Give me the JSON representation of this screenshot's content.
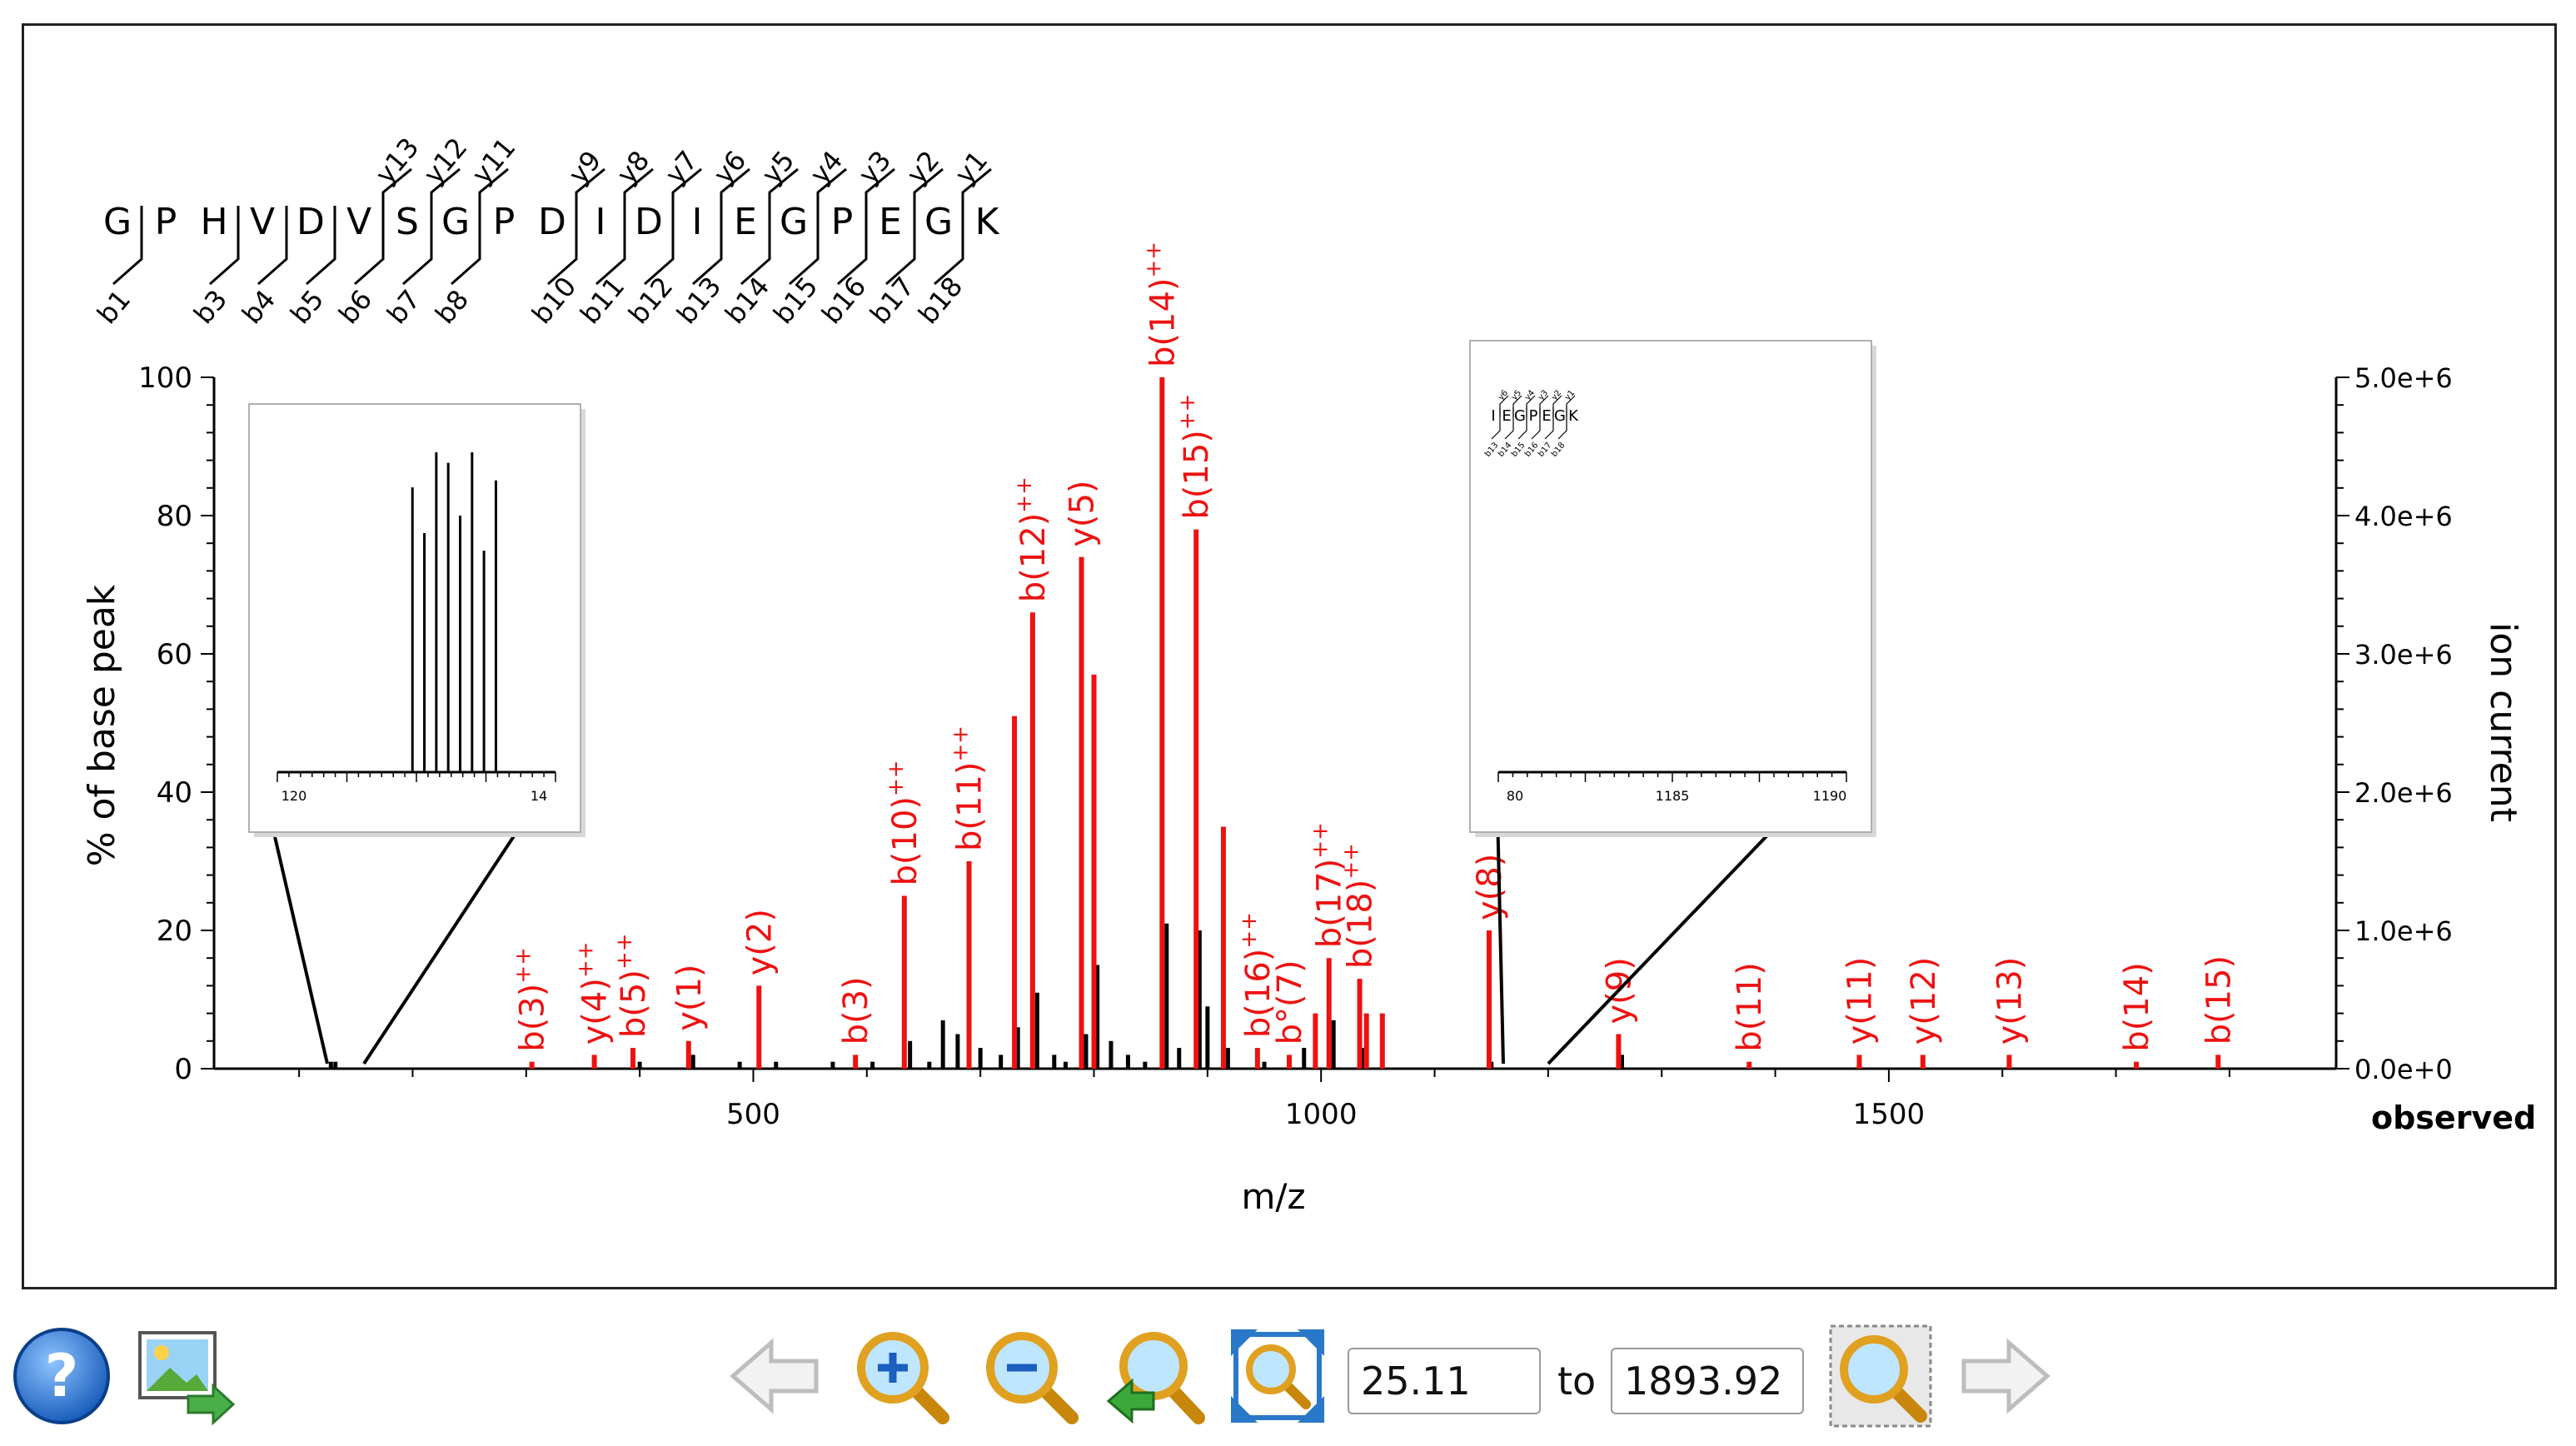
{
  "colors": {
    "matched": "#ee1111",
    "unmatched": "#000000",
    "frame": "#222222"
  },
  "peptide": {
    "residues": [
      "G",
      "P",
      "H",
      "V",
      "D",
      "V",
      "S",
      "G",
      "P",
      "D",
      "I",
      "D",
      "I",
      "E",
      "G",
      "P",
      "E",
      "G",
      "K"
    ],
    "y_ions": [
      {
        "label": "y13",
        "after": 6
      },
      {
        "label": "y12",
        "after": 7
      },
      {
        "label": "y11",
        "after": 8
      },
      {
        "label": "y9",
        "after": 10
      },
      {
        "label": "y8",
        "after": 11
      },
      {
        "label": "y7",
        "after": 12
      },
      {
        "label": "y6",
        "after": 13
      },
      {
        "label": "y5",
        "after": 14
      },
      {
        "label": "y4",
        "after": 15
      },
      {
        "label": "y3",
        "after": 16
      },
      {
        "label": "y2",
        "after": 17
      },
      {
        "label": "y1",
        "after": 18
      }
    ],
    "b_ions": [
      {
        "label": "b1",
        "after": 1
      },
      {
        "label": "b3",
        "after": 3
      },
      {
        "label": "b4",
        "after": 4
      },
      {
        "label": "b5",
        "after": 5
      },
      {
        "label": "b6",
        "after": 6
      },
      {
        "label": "b7",
        "after": 7
      },
      {
        "label": "b8",
        "after": 8
      },
      {
        "label": "b10",
        "after": 10
      },
      {
        "label": "b11",
        "after": 11
      },
      {
        "label": "b12",
        "after": 12
      },
      {
        "label": "b13",
        "after": 13
      },
      {
        "label": "b14",
        "after": 14
      },
      {
        "label": "b15",
        "after": 15
      },
      {
        "label": "b16",
        "after": 16
      },
      {
        "label": "b17",
        "after": 17
      },
      {
        "label": "b18",
        "after": 18
      }
    ]
  },
  "chart_data": {
    "type": "bar",
    "xlabel": "m/z",
    "ylabel": "% of base peak",
    "y2label": "ion current",
    "xlim": [
      25.11,
      1893.92
    ],
    "ylim": [
      0,
      100
    ],
    "y2lim": [
      0,
      5000000
    ],
    "xticks": [
      500,
      1000,
      1500
    ],
    "yticks": [
      0,
      20,
      40,
      60,
      80,
      100
    ],
    "y2ticks": [
      "0.0e+0",
      "1.0e+6",
      "2.0e+6",
      "3.0e+6",
      "4.0e+6",
      "5.0e+6"
    ],
    "corner_label": "observed",
    "matched_peaks": [
      {
        "mz": 305,
        "intensity": 1,
        "label": "b(3)",
        "charge": "++"
      },
      {
        "mz": 360,
        "intensity": 2,
        "label": "y(4)",
        "charge": "++"
      },
      {
        "mz": 394,
        "intensity": 3,
        "label": "b(5)",
        "charge": "++"
      },
      {
        "mz": 443,
        "intensity": 4,
        "label": "y(1)",
        "charge": ""
      },
      {
        "mz": 505,
        "intensity": 12,
        "label": "y(2)",
        "charge": ""
      },
      {
        "mz": 590,
        "intensity": 2,
        "label": "b(3)",
        "charge": ""
      },
      {
        "mz": 633,
        "intensity": 25,
        "label": "b(10)",
        "charge": "++"
      },
      {
        "mz": 690,
        "intensity": 30,
        "label": "b(11)",
        "charge": "++"
      },
      {
        "mz": 746,
        "intensity": 66,
        "label": "b(12)",
        "charge": "++"
      },
      {
        "mz": 730,
        "intensity": 51,
        "label": "",
        "charge": ""
      },
      {
        "mz": 789,
        "intensity": 74,
        "label": "y(5)",
        "charge": ""
      },
      {
        "mz": 800,
        "intensity": 57,
        "label": "",
        "charge": ""
      },
      {
        "mz": 860,
        "intensity": 100,
        "label": "b(14)",
        "charge": "++"
      },
      {
        "mz": 890,
        "intensity": 78,
        "label": "b(15)",
        "charge": "++"
      },
      {
        "mz": 914,
        "intensity": 35,
        "label": "",
        "charge": ""
      },
      {
        "mz": 944,
        "intensity": 3,
        "label": "b(16)",
        "charge": "++"
      },
      {
        "mz": 972,
        "intensity": 2,
        "label": "b°(7)",
        "charge": ""
      },
      {
        "mz": 995,
        "intensity": 8,
        "label": "",
        "charge": ""
      },
      {
        "mz": 1007,
        "intensity": 16,
        "label": "b(17)",
        "charge": "++"
      },
      {
        "mz": 1034,
        "intensity": 13,
        "label": "b(18)",
        "charge": "++"
      },
      {
        "mz": 1040,
        "intensity": 8,
        "label": "",
        "charge": ""
      },
      {
        "mz": 1054,
        "intensity": 8,
        "label": "",
        "charge": ""
      },
      {
        "mz": 1148,
        "intensity": 20,
        "label": "y(8)",
        "charge": ""
      },
      {
        "mz": 1262,
        "intensity": 5,
        "label": "y(9)",
        "charge": ""
      },
      {
        "mz": 1377,
        "intensity": 1,
        "label": "b(11)",
        "charge": ""
      },
      {
        "mz": 1474,
        "intensity": 2,
        "label": "y(11)",
        "charge": ""
      },
      {
        "mz": 1530,
        "intensity": 2,
        "label": "y(12)",
        "charge": ""
      },
      {
        "mz": 1606,
        "intensity": 2,
        "label": "y(13)",
        "charge": ""
      },
      {
        "mz": 1718,
        "intensity": 1,
        "label": "b(14)",
        "charge": ""
      },
      {
        "mz": 1790,
        "intensity": 2,
        "label": "b(15)",
        "charge": ""
      }
    ],
    "unmatched_peaks": [
      {
        "mz": 128,
        "intensity": 1
      },
      {
        "mz": 132,
        "intensity": 1
      },
      {
        "mz": 360,
        "intensity": 1
      },
      {
        "mz": 400,
        "intensity": 1
      },
      {
        "mz": 447,
        "intensity": 2
      },
      {
        "mz": 488,
        "intensity": 1
      },
      {
        "mz": 520,
        "intensity": 1
      },
      {
        "mz": 570,
        "intensity": 1
      },
      {
        "mz": 605,
        "intensity": 1
      },
      {
        "mz": 638,
        "intensity": 4
      },
      {
        "mz": 655,
        "intensity": 1
      },
      {
        "mz": 667,
        "intensity": 7
      },
      {
        "mz": 680,
        "intensity": 5
      },
      {
        "mz": 700,
        "intensity": 3
      },
      {
        "mz": 718,
        "intensity": 2
      },
      {
        "mz": 733,
        "intensity": 6
      },
      {
        "mz": 750,
        "intensity": 11
      },
      {
        "mz": 765,
        "intensity": 2
      },
      {
        "mz": 775,
        "intensity": 1
      },
      {
        "mz": 793,
        "intensity": 5
      },
      {
        "mz": 803,
        "intensity": 15
      },
      {
        "mz": 815,
        "intensity": 4
      },
      {
        "mz": 830,
        "intensity": 2
      },
      {
        "mz": 845,
        "intensity": 1
      },
      {
        "mz": 864,
        "intensity": 21
      },
      {
        "mz": 875,
        "intensity": 3
      },
      {
        "mz": 893,
        "intensity": 20
      },
      {
        "mz": 900,
        "intensity": 9
      },
      {
        "mz": 918,
        "intensity": 3
      },
      {
        "mz": 950,
        "intensity": 1
      },
      {
        "mz": 985,
        "intensity": 3
      },
      {
        "mz": 1011,
        "intensity": 7
      },
      {
        "mz": 1036,
        "intensity": 3
      },
      {
        "mz": 1150,
        "intensity": 1
      },
      {
        "mz": 1265,
        "intensity": 2
      }
    ],
    "insets": [
      {
        "name": "inset-zoom-left",
        "xlabels": [
          "120",
          "14"
        ],
        "xlim": [
          110,
          145
        ],
        "peaks": [
          {
            "mz": 127,
            "h": 81
          },
          {
            "mz": 128.5,
            "h": 68
          },
          {
            "mz": 130,
            "h": 91
          },
          {
            "mz": 131.5,
            "h": 88
          },
          {
            "mz": 133,
            "h": 73
          },
          {
            "mz": 134.5,
            "h": 91
          },
          {
            "mz": 136,
            "h": 63
          },
          {
            "mz": 137.5,
            "h": 83
          }
        ]
      },
      {
        "name": "inset-zoom-right",
        "xlabels": [
          "80",
          "1185",
          "1190"
        ],
        "xlim": [
          1180,
          1190
        ],
        "sequence": [
          "I",
          "E",
          "G",
          "P",
          "E",
          "G",
          "K"
        ],
        "y_ions": [
          {
            "label": "y6",
            "after": 1
          },
          {
            "label": "y5",
            "after": 2
          },
          {
            "label": "y4",
            "after": 3
          },
          {
            "label": "y3",
            "after": 4
          },
          {
            "label": "y2",
            "after": 5
          },
          {
            "label": "y1",
            "after": 6
          }
        ],
        "b_ions": [
          {
            "label": "b13",
            "after": 1
          },
          {
            "label": "b14",
            "after": 2
          },
          {
            "label": "b15",
            "after": 3
          },
          {
            "label": "b16",
            "after": 4
          },
          {
            "label": "b17",
            "after": 5
          },
          {
            "label": "b18",
            "after": 6
          }
        ]
      }
    ]
  },
  "toolbar": {
    "range_from": "25.11",
    "range_to_label": "to",
    "range_to": "1893.92",
    "icons": [
      "help-icon",
      "export-image-icon",
      "back-arrow-icon",
      "zoom-in-icon",
      "zoom-out-icon",
      "zoom-previous-icon",
      "zoom-fit-icon",
      "zoom-apply-icon",
      "forward-arrow-icon"
    ]
  }
}
